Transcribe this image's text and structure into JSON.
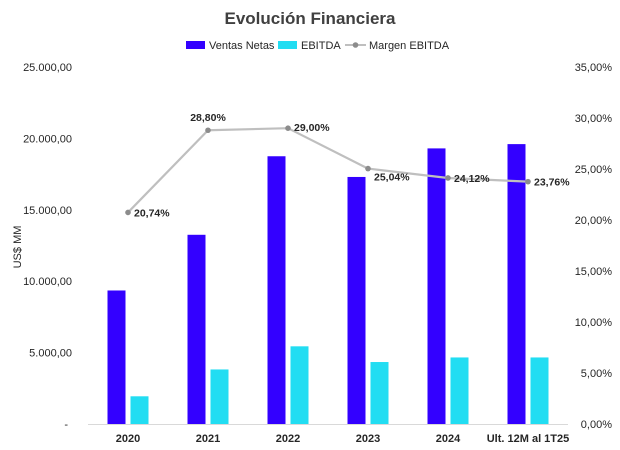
{
  "chart_data": {
    "type": "bar",
    "title": "Evolución Financiera",
    "ylabel": "US$ MM",
    "y2label": "",
    "categories": [
      "2020",
      "2021",
      "2022",
      "2023",
      "2024",
      "Ult. 12M al 1T25"
    ],
    "ylim": [
      0,
      25000
    ],
    "y2lim": [
      0,
      35
    ],
    "y_ticks": [
      "-",
      "5.000,00",
      "10.000,00",
      "15.000,00",
      "20.000,00",
      "25.000,00"
    ],
    "y2_ticks": [
      "0,00%",
      "5,00%",
      "10,00%",
      "15,00%",
      "20,00%",
      "25,00%",
      "30,00%",
      "35,00%"
    ],
    "legend_position": "top",
    "grid": false,
    "series": [
      {
        "name": "Ventas Netas",
        "kind": "bar",
        "axis": "left",
        "color": "#3300ff",
        "values": [
          9350,
          13250,
          18750,
          17300,
          19300,
          19600
        ]
      },
      {
        "name": "EBITDA",
        "kind": "bar",
        "axis": "left",
        "color": "#22ddf2",
        "values": [
          1940,
          3820,
          5440,
          4340,
          4660,
          4660
        ]
      },
      {
        "name": "Margen EBITDA",
        "kind": "line",
        "axis": "right",
        "color": "#bfbfbf",
        "marker_color": "#8c8c8c",
        "values": [
          20.74,
          28.8,
          29.0,
          25.04,
          24.12,
          23.76
        ],
        "labels": [
          "20,74%",
          "28,80%",
          "29,00%",
          "25,04%",
          "24,12%",
          "23,76%"
        ]
      }
    ]
  }
}
